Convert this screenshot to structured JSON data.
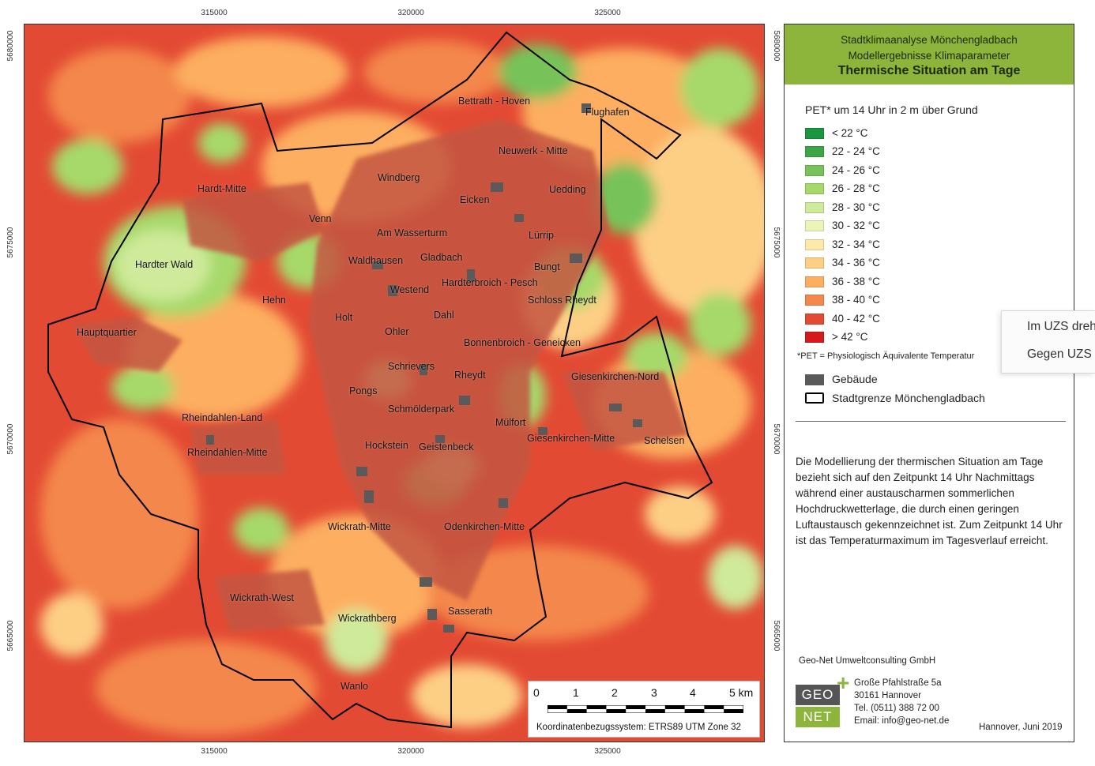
{
  "header": {
    "line1": "Stadtklimaanalyse Mönchengladbach",
    "line2": "Modellergebnisse Klimaparameter",
    "title": "Thermische Situation am Tage"
  },
  "legend": {
    "title": "PET* um 14 Uhr in 2 m über Grund",
    "classes": [
      {
        "label": "< 22 °C",
        "color": "#1a9641"
      },
      {
        "label": "22 - 24 °C",
        "color": "#3ea64a"
      },
      {
        "label": "24 - 26 °C",
        "color": "#77c35a"
      },
      {
        "label": "26 - 28 °C",
        "color": "#a6d96a"
      },
      {
        "label": "28 - 30 °C",
        "color": "#cfea9a"
      },
      {
        "label": "30 - 32 °C",
        "color": "#ecf4b8"
      },
      {
        "label": "32 - 34 °C",
        "color": "#fde9a9"
      },
      {
        "label": "34 - 36 °C",
        "color": "#fdcf85"
      },
      {
        "label": "36 - 38 °C",
        "color": "#fdae61"
      },
      {
        "label": "38 - 40 °C",
        "color": "#f4874c"
      },
      {
        "label": "40 - 42 °C",
        "color": "#e34a33"
      },
      {
        "label": "> 42 °C",
        "color": "#d7191c"
      }
    ],
    "footnote": "*PET = Physiologisch Äquivalente Temperatur",
    "building_label": "Gebäude",
    "building_color": "#5a5a5a",
    "boundary_label": "Stadtgrenze Mönchengladbach"
  },
  "description": "Die Modellierung der thermischen Situation am Tage bezieht sich auf den Zeitpunkt 14 Uhr Nachmittags während einer austauscharmen sommerlichen Hochdruckwetterlage, die durch einen geringen Luftaustausch gekennzeichnet ist. Zum Zeitpunkt 14 Uhr ist das Temperaturmaximum im Tagesverlauf erreicht.",
  "company": {
    "name": "Geo-Net Umweltconsulting GmbH",
    "logo_top": "GEO",
    "logo_bottom": "NET",
    "address_line1": "Große Pfahlstraße 5a",
    "address_line2": "30161 Hannover",
    "phone": "Tel. (0511) 388 72 00",
    "email": "Email: info@geo-net.de",
    "date": "Hannover, Juni 2019"
  },
  "axes": {
    "x_ticks": [
      "315000",
      "320000",
      "325000"
    ],
    "y_ticks": [
      "5680000",
      "5675000",
      "5670000",
      "5665000"
    ]
  },
  "scalebar": {
    "labels": [
      "0",
      "1",
      "2",
      "3",
      "4",
      "5 km"
    ],
    "crs": "Koordinatenbezugssystem: ETRS89 UTM Zone 32"
  },
  "places": [
    "Bettrath - Hoven",
    "Flughafen",
    "Neuwerk - Mitte",
    "Windberg",
    "Hardt-Mitte",
    "Uedding",
    "Eicken",
    "Venn",
    "Am Wasserturm",
    "Lürrip",
    "Hardter Wald",
    "Waldhausen",
    "Gladbach",
    "Bungt",
    "Westend",
    "Hardterbroich - Pesch",
    "Hehn",
    "Schloss Rheydt",
    "Hauptquartier",
    "Holt",
    "Dahl",
    "Ohler",
    "Bonnenbroich - Geneicken",
    "Schrievers",
    "Rheydt",
    "Giesenkirchen-Nord",
    "Pongs",
    "Schmölderpark",
    "Rheindahlen-Land",
    "Mülfort",
    "Giesenkirchen-Mitte",
    "Schelsen",
    "Hockstein",
    "Geistenbeck",
    "Rheindahlen-Mitte",
    "Wickrath-Mitte",
    "Odenkirchen-Mitte",
    "Wickrath-West",
    "Sasserath",
    "Wickrathberg",
    "Wanlo"
  ],
  "context_menu": {
    "items": [
      "Im UZS drehen",
      "Gegen UZS drehen"
    ]
  }
}
